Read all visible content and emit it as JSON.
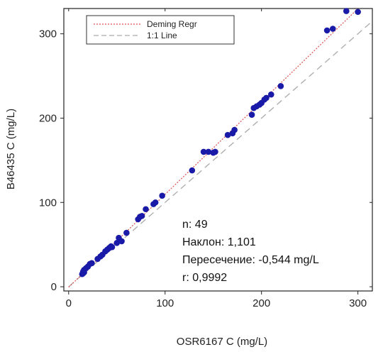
{
  "chart_data": {
    "type": "scatter",
    "xlabel": "OSR6167 C (mg/L)",
    "ylabel": "B46435 C (mg/L)",
    "xlim": [
      -5,
      315
    ],
    "ylim": [
      -5,
      330
    ],
    "xticks": [
      "0",
      "100",
      "200",
      "300"
    ],
    "yticks": [
      "0",
      "100",
      "200",
      "300"
    ],
    "xtick_values": [
      0,
      100,
      200,
      300
    ],
    "ytick_values": [
      0,
      100,
      200,
      300
    ],
    "grid": false,
    "legend": {
      "position": "top-left",
      "entries": [
        {
          "label": "Deming Regr",
          "color": "#e05050",
          "style": "dotted"
        },
        {
          "label": "1:1 Line",
          "color": "#aaaaaa",
          "style": "dashed"
        }
      ]
    },
    "point_color": "#1a1aa8",
    "regression": {
      "slope": 1.101,
      "intercept": -0.544
    },
    "identity": {
      "slope": 1,
      "intercept": 0
    },
    "points": [
      [
        14,
        15
      ],
      [
        15,
        18
      ],
      [
        16,
        20
      ],
      [
        18,
        22
      ],
      [
        20,
        24
      ],
      [
        22,
        27
      ],
      [
        24,
        28
      ],
      [
        30,
        33
      ],
      [
        33,
        36
      ],
      [
        35,
        38
      ],
      [
        38,
        42
      ],
      [
        40,
        44
      ],
      [
        42,
        46
      ],
      [
        45,
        47
      ],
      [
        50,
        52
      ],
      [
        52,
        58
      ],
      [
        55,
        54
      ],
      [
        60,
        64
      ],
      [
        72,
        80
      ],
      [
        74,
        83
      ],
      [
        76,
        84
      ],
      [
        80,
        92
      ],
      [
        88,
        98
      ],
      [
        90,
        100
      ],
      [
        97,
        108
      ],
      [
        128,
        138
      ],
      [
        140,
        160
      ],
      [
        145,
        160
      ],
      [
        150,
        159
      ],
      [
        152,
        160
      ],
      [
        165,
        180
      ],
      [
        170,
        182
      ],
      [
        172,
        186
      ],
      [
        190,
        204
      ],
      [
        192,
        212
      ],
      [
        195,
        214
      ],
      [
        198,
        216
      ],
      [
        200,
        218
      ],
      [
        203,
        222
      ],
      [
        205,
        224
      ],
      [
        210,
        228
      ],
      [
        220,
        238
      ],
      [
        268,
        304
      ],
      [
        274,
        306
      ],
      [
        288,
        327
      ],
      [
        300,
        326
      ],
      [
        16,
        17
      ],
      [
        44,
        48
      ],
      [
        15,
        16
      ]
    ]
  },
  "stats": {
    "n": "n: 49",
    "slope": "Наклон: 1,101",
    "intercept": "Пересечение: -0,544 mg/L",
    "r": "r: 0,9992"
  }
}
